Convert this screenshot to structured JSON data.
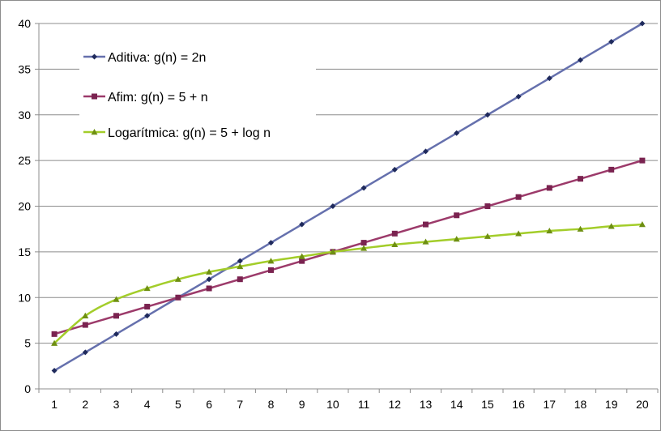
{
  "chart_data": {
    "type": "line",
    "title": "",
    "xlabel": "",
    "ylabel": "",
    "x": [
      1,
      2,
      3,
      4,
      5,
      6,
      7,
      8,
      9,
      10,
      11,
      12,
      13,
      14,
      15,
      16,
      17,
      18,
      19,
      20
    ],
    "xlim": [
      1,
      20
    ],
    "ylim": [
      0,
      40
    ],
    "y_ticks": [
      0,
      5,
      10,
      15,
      20,
      25,
      30,
      35,
      40
    ],
    "grid": "horizontal",
    "legend_position": "top-left",
    "series": [
      {
        "name": "Aditiva: g(n) = 2n",
        "color": "#6570ad",
        "marker": "diamond",
        "marker_color": "#1f2a5c",
        "values": [
          2,
          4,
          6,
          8,
          10,
          12,
          14,
          16,
          18,
          20,
          22,
          24,
          26,
          28,
          30,
          32,
          34,
          36,
          38,
          40
        ]
      },
      {
        "name": "Afim: g(n) = 5 + n",
        "color": "#9c3a6a",
        "marker": "square",
        "marker_color": "#7a2350",
        "values": [
          6,
          7,
          8,
          9,
          10,
          11,
          12,
          13,
          14,
          15,
          16,
          17,
          18,
          19,
          20,
          21,
          22,
          23,
          24,
          25
        ]
      },
      {
        "name": "Logarítmica: g(n) = 5 + log n",
        "color": "#a3cd2a",
        "marker": "triangle",
        "marker_color": "#6e8f12",
        "values": [
          5,
          8,
          9.8,
          11,
          12,
          12.8,
          13.4,
          14,
          14.5,
          15,
          15.4,
          15.8,
          16.1,
          16.4,
          16.7,
          17,
          17.3,
          17.5,
          17.8,
          18
        ]
      }
    ]
  }
}
